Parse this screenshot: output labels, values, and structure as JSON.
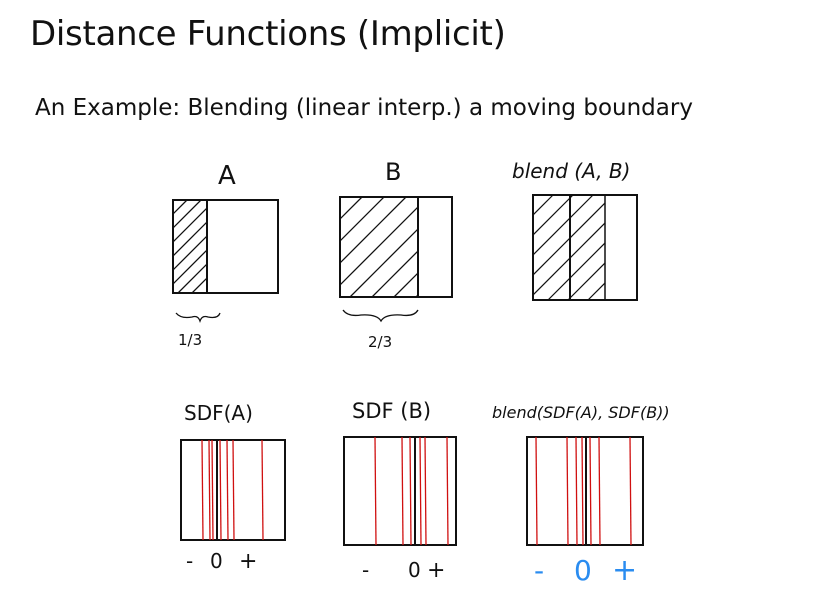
{
  "slide": {
    "title": "Distance Functions (Implicit)",
    "subtitle": "An Example: Blending (linear interp.) a moving boundary"
  },
  "sketches": {
    "top": [
      {
        "label": "A",
        "fraction_label": "1/3"
      },
      {
        "label": "B",
        "fraction_label": "2/3"
      },
      {
        "label": "blend (A, B)"
      }
    ],
    "bottom": [
      {
        "label": "SDF(A)",
        "axis": [
          "-",
          "0",
          "+"
        ]
      },
      {
        "label": "SDF (B)",
        "axis": [
          "-",
          "0",
          "+"
        ]
      },
      {
        "label": "blend(SDF(A), SDF(B))",
        "axis": [
          "-",
          "0",
          "+"
        ]
      }
    ]
  },
  "colors": {
    "ink": "#111111",
    "isolines": "#d01010",
    "blend_axis": "#2a8cf0"
  }
}
